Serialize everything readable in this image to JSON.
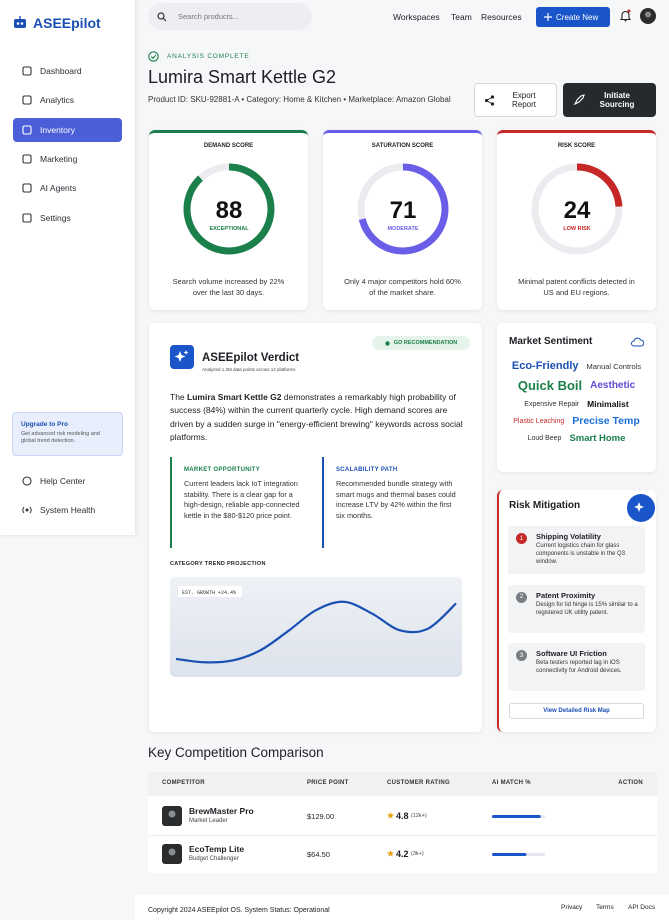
{
  "brand": "ASEEpilot",
  "nav": [
    "Dashboard",
    "Analytics",
    "Inventory",
    "Marketing",
    "AI Agents",
    "Settings"
  ],
  "upgrade": {
    "title": "Upgrade to Pro",
    "text": "Get advanced risk modeling and global trend detection."
  },
  "footer_nav": [
    "Help Center",
    "System Health"
  ],
  "search_placeholder": "Search products...",
  "top_links": [
    "Workspaces",
    "Team",
    "Resources"
  ],
  "create_button": "Create New",
  "status": "ANALYSIS COMPLETE",
  "product": {
    "name": "Lumira Smart Kettle G2",
    "meta": "Product ID: SKU-92881-A • Category: Home & Kitchen • Marketplace: Amazon Global"
  },
  "actions": [
    "Export Report",
    "Initiate Sourcing"
  ],
  "score_scale": [
    0,
    100
  ],
  "scores": [
    {
      "label": "DEMAND SCORE",
      "value": 88,
      "status": "EXCEPTIONAL",
      "color": "#1b7f4b",
      "note": "Search volume increased by 22% over the last 30 days."
    },
    {
      "label": "SATURATION SCORE",
      "value": 71,
      "status": "MODERATE",
      "color": "#6a5ee8",
      "note": "Only 4 major competitors hold 60% of the market share."
    },
    {
      "label": "RISK SCORE",
      "value": 24,
      "status": "LOW RISK",
      "color": "#c62828",
      "note": "Minimal patent conflicts detected in US and EU regions."
    }
  ],
  "verdict": {
    "title": "ASEEpilot Verdict",
    "subtitle": "Analyzed 1.2M data points across 12 platforms",
    "badge": "GO RECOMMENDATION",
    "lead": "The",
    "bold": "Lumira Smart Kettle G2",
    "body": "demonstrates a remarkably high probability of success (84%) within the current quarterly cycle. High demand scores are driven by a sudden surge in \"energy-efficient brewing\" keywords across social platforms.",
    "cards": [
      {
        "title": "MARKET OPPORTUNITY",
        "text": "Current leaders lack IoT integration stability. There is a clear gap for a high-design, reliable app-connected kettle in the $80-$120 price point.",
        "color": "#1b7f4b"
      },
      {
        "title": "SCALABILITY PATH",
        "text": "Recommended bundle strategy with smart mugs and thermal bases could increase LTV by 42% within the first six months.",
        "color": "#1a4fb3"
      }
    ]
  },
  "trend": {
    "type": "line",
    "title": "CATEGORY TREND PROJECTION",
    "label": "EST. GROWTH +24.4%",
    "color": "#1a4fb3",
    "values": [
      12,
      8,
      10,
      22,
      45,
      70,
      80,
      66,
      46,
      48,
      78
    ],
    "ylim": [
      0,
      100
    ]
  },
  "sentiment": {
    "title": "Market Sentiment",
    "words": [
      {
        "text": "Eco-Friendly",
        "color": "#1a4fb3"
      },
      {
        "text": "Manual Controls",
        "color": "#333333"
      },
      {
        "text": "Quick Boil",
        "color": "#1b7f4b"
      },
      {
        "text": "Aesthetic",
        "color": "#5b4bd6"
      },
      {
        "text": "Expensive Repair",
        "color": "#333333"
      },
      {
        "text": "Minimalist",
        "color": "#111111"
      },
      {
        "text": "Plastic Leaching",
        "color": "#c62828"
      },
      {
        "text": "Precise Temp",
        "color": "#1a6fd8"
      },
      {
        "text": "Loud Beep",
        "color": "#333333"
      },
      {
        "text": "Smart Home",
        "color": "#1b7f4b"
      }
    ]
  },
  "risk": {
    "title": "Risk Mitigation",
    "items": [
      {
        "n": 1,
        "title": "Shipping Volatility",
        "text": "Current logistics chain for glass components is unstable in the Q3 window."
      },
      {
        "n": 2,
        "title": "Patent Proximity",
        "text": "Design for lid hinge is 15% similar to a registered UK utility patent."
      },
      {
        "n": 3,
        "title": "Software UI Friction",
        "text": "Beta testers reported lag in iOS connectivity for Android devices."
      }
    ],
    "link": "View Detailed Risk Map"
  },
  "competition": {
    "title": "Key Competition Comparison",
    "columns": [
      "COMPETITOR",
      "PRICE POINT",
      "CUSTOMER RATING",
      "AI MATCH %",
      "ACTION"
    ],
    "match_scale": [
      0,
      100
    ],
    "rows": [
      {
        "name": "BrewMaster Pro",
        "tag": "Market Leader",
        "price": "$129.00",
        "rating": 4.8,
        "reviews": "(12k+)",
        "match": 92
      },
      {
        "name": "EcoTemp Lite",
        "tag": "Budget Challenger",
        "price": "$64.50",
        "rating": 4.2,
        "reviews": "(3k+)",
        "match": 65
      }
    ]
  },
  "footer": {
    "copyright": "Copyright 2024 ASEEpilot OS. System Status: Operational",
    "links": [
      "Privacy",
      "Terms",
      "API Docs"
    ]
  }
}
